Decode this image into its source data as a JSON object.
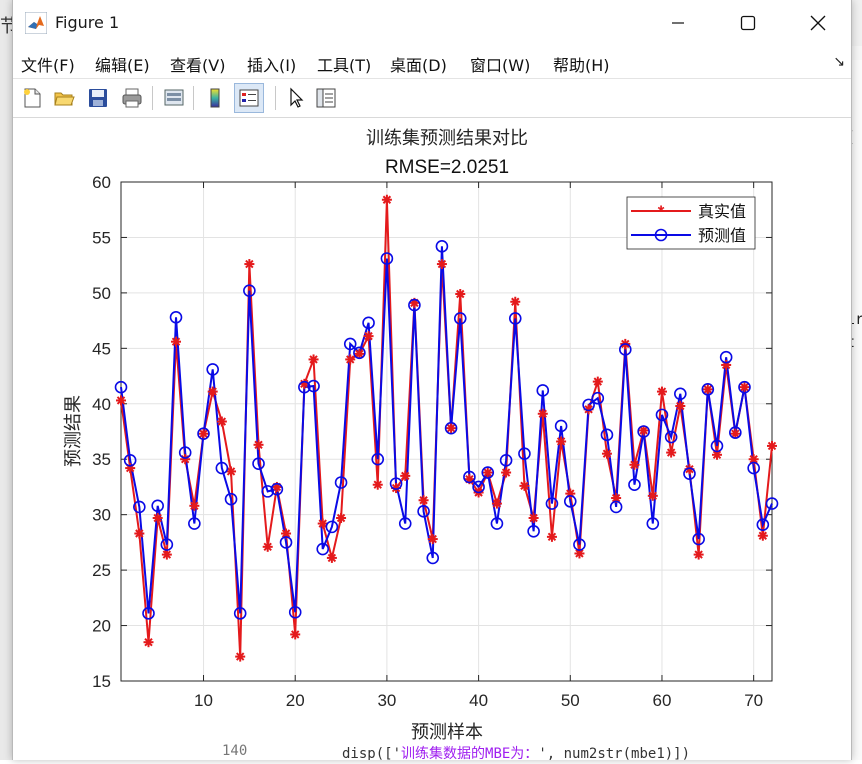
{
  "window": {
    "title": "Figure 1",
    "menu": [
      "文件(F)",
      "编辑(E)",
      "查看(V)",
      "插入(I)",
      "工具(T)",
      "桌面(D)",
      "窗口(W)",
      "帮助(H)"
    ]
  },
  "toolbar": {
    "buttons": [
      "new-figure-icon",
      "open-file-icon",
      "save-icon",
      "print-icon",
      "print-preview-icon",
      "colorbar-icon",
      "legend-icon",
      "pointer-icon",
      "property-inspector-icon"
    ]
  },
  "background": {
    "code_line_number": "140",
    "code_line_prefix": "disp(['",
    "code_line_string": "训练集数据的MBE为：",
    "code_line_suffix": "', num2str(mbe1)])",
    "right_edge_text": [
      "(",
      "ir",
      "t"
    ],
    "left_edge_text": "节"
  },
  "chart_data": {
    "type": "line",
    "title": "训练集预测结果对比",
    "subtitle": "RMSE=2.0251",
    "xlabel": "预测样本",
    "ylabel": "预测结果",
    "xlim": [
      1,
      72
    ],
    "ylim": [
      15,
      60
    ],
    "xticks": [
      10,
      20,
      30,
      40,
      50,
      60,
      70
    ],
    "yticks": [
      15,
      20,
      25,
      30,
      35,
      40,
      45,
      50,
      55,
      60
    ],
    "grid": true,
    "legend_position": "top-right",
    "colors": {
      "actual": "#e41a1c",
      "predicted": "#0a0ae6"
    },
    "x": [
      1,
      2,
      3,
      4,
      5,
      6,
      7,
      8,
      9,
      10,
      11,
      12,
      13,
      14,
      15,
      16,
      17,
      18,
      19,
      20,
      21,
      22,
      23,
      24,
      25,
      26,
      27,
      28,
      29,
      30,
      31,
      32,
      33,
      34,
      35,
      36,
      37,
      38,
      39,
      40,
      41,
      42,
      43,
      44,
      45,
      46,
      47,
      48,
      49,
      50,
      51,
      52,
      53,
      54,
      55,
      56,
      57,
      58,
      59,
      60,
      61,
      62,
      63,
      64,
      65,
      66,
      67,
      68,
      69,
      70,
      71,
      72
    ],
    "series": [
      {
        "name": "真实值",
        "marker": "*",
        "values": [
          40.3,
          34.2,
          28.3,
          18.5,
          29.7,
          26.4,
          45.6,
          35.0,
          30.8,
          37.3,
          41.1,
          38.4,
          33.9,
          17.2,
          52.6,
          36.3,
          27.1,
          32.5,
          28.3,
          19.2,
          41.8,
          44.0,
          29.2,
          26.1,
          29.7,
          44.0,
          44.5,
          46.1,
          32.7,
          58.4,
          32.4,
          33.5,
          49.1,
          31.3,
          27.8,
          52.6,
          37.8,
          49.9,
          33.2,
          32.0,
          33.8,
          31.0,
          33.8,
          49.2,
          32.6,
          29.7,
          39.1,
          28.0,
          36.6,
          31.9,
          26.5,
          39.5,
          42.0,
          35.5,
          31.5,
          45.4,
          34.5,
          37.6,
          31.7,
          41.1,
          35.6,
          39.8,
          34.1,
          26.4,
          41.3,
          35.4,
          43.5,
          37.3,
          41.5,
          35.0,
          28.1,
          36.2
        ]
      },
      {
        "name": "预测值",
        "marker": "o",
        "values": [
          41.5,
          34.9,
          30.7,
          21.1,
          30.8,
          27.3,
          47.8,
          35.6,
          29.2,
          37.3,
          43.1,
          34.2,
          31.4,
          21.1,
          50.2,
          34.6,
          32.1,
          32.3,
          27.5,
          21.2,
          41.5,
          41.6,
          26.9,
          28.9,
          32.9,
          45.4,
          44.6,
          47.3,
          35.0,
          53.1,
          32.8,
          29.2,
          48.9,
          30.3,
          26.1,
          54.2,
          37.8,
          47.7,
          33.4,
          32.5,
          33.8,
          29.2,
          34.9,
          47.7,
          35.5,
          28.5,
          41.2,
          31.0,
          38.0,
          31.2,
          27.3,
          39.9,
          40.5,
          37.2,
          30.7,
          44.9,
          32.7,
          37.5,
          29.2,
          39.0,
          37.0,
          40.9,
          33.7,
          27.8,
          41.3,
          36.2,
          44.2,
          37.4,
          41.5,
          34.2,
          29.1,
          31.0
        ]
      }
    ]
  }
}
